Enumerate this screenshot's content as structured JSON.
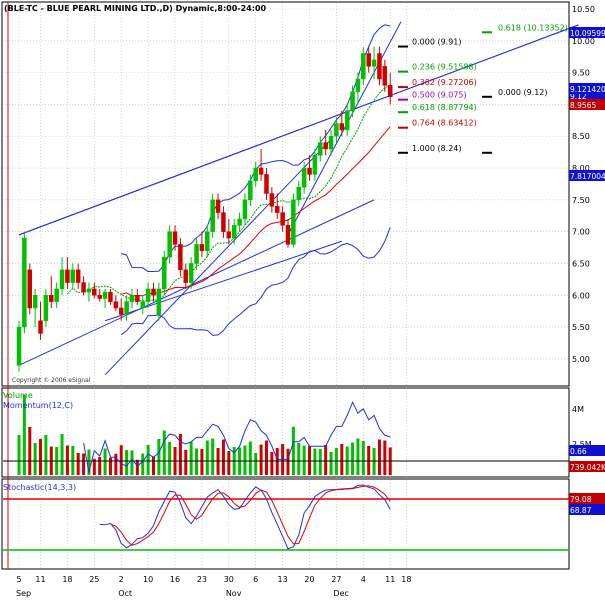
{
  "header": {
    "title": "(BLE-TC - BLUE PEARL MINING LTD.,D) Dynamic,8:00-24:00"
  },
  "copyright": "Copyright © 2006 eSignal",
  "colors": {
    "up": "#00c000",
    "down": "#d00000",
    "channel": "#2030e0",
    "ma_short": "#00a000",
    "ma_long": "#e00000",
    "fib_green": "#00a000",
    "fib_red": "#c00000",
    "fib_purple": "#a000c0",
    "fib_black": "#000000",
    "price_badge_blue": "#1010d0",
    "price_badge_red": "#c00000"
  },
  "chart_data": [
    {
      "type": "candlestick",
      "title": "(BLE-TC - BLUE PEARL MINING LTD.,D) Dynamic,8:00-24:00",
      "ylim": [
        4.7,
        10.5
      ],
      "y_ticks": [
        "10.50",
        "10.00",
        "9.50",
        "9.00",
        "8.50",
        "8.00",
        "7.50",
        "7.00",
        "6.50",
        "6.00",
        "5.50",
        "5.00"
      ],
      "x_ticks": [
        "5",
        "11",
        "18",
        "25",
        "2",
        "10",
        "16",
        "23",
        "30",
        "6",
        "13",
        "20",
        "27",
        "4",
        "11",
        "18"
      ],
      "months": [
        "Sep",
        "Oct",
        "Nov",
        "Dec"
      ],
      "right_badges": [
        {
          "value": "10.0959959",
          "style": "blue"
        },
        {
          "value": "9.12",
          "style": "blue"
        },
        {
          "value": "9.1214206",
          "style": "blue"
        },
        {
          "value": "8.9565",
          "style": "red"
        },
        {
          "value": "7.8170040",
          "style": "blue"
        }
      ],
      "fib_levels": [
        {
          "label": "0.000 (9.91)",
          "value": 9.91,
          "color": "black"
        },
        {
          "label": "0.236 (9.51588)",
          "value": 9.516,
          "color": "green"
        },
        {
          "label": "0.382 (9.27206)",
          "value": 9.272,
          "color": "red"
        },
        {
          "label": "0.500 (9.075)",
          "value": 9.075,
          "color": "purple"
        },
        {
          "label": "0.618 (8.87794)",
          "value": 8.878,
          "color": "green"
        },
        {
          "label": "0.764 (8.63412)",
          "value": 8.634,
          "color": "red"
        },
        {
          "label": "1.000 (8.24)",
          "value": 8.24,
          "color": "black"
        },
        {
          "label": "0.618 (10.13352)",
          "value": 10.134,
          "color": "green"
        },
        {
          "label": "0.000 (9.12)",
          "value": 9.12,
          "color": "black"
        }
      ],
      "candles": [
        {
          "o": 4.9,
          "h": 5.6,
          "l": 4.8,
          "c": 5.5
        },
        {
          "o": 5.5,
          "h": 7.0,
          "l": 5.4,
          "c": 6.9
        },
        {
          "o": 6.4,
          "h": 6.5,
          "l": 5.7,
          "c": 5.8
        },
        {
          "o": 5.8,
          "h": 6.1,
          "l": 5.5,
          "c": 6.0
        },
        {
          "o": 5.6,
          "h": 5.9,
          "l": 5.3,
          "c": 5.4
        },
        {
          "o": 5.6,
          "h": 6.1,
          "l": 5.5,
          "c": 6.0
        },
        {
          "o": 6.0,
          "h": 6.3,
          "l": 5.8,
          "c": 5.9
        },
        {
          "o": 5.9,
          "h": 6.2,
          "l": 5.8,
          "c": 6.1
        },
        {
          "o": 6.1,
          "h": 6.6,
          "l": 6.0,
          "c": 6.4
        },
        {
          "o": 6.4,
          "h": 6.6,
          "l": 6.1,
          "c": 6.2
        },
        {
          "o": 6.2,
          "h": 6.5,
          "l": 6.1,
          "c": 6.4
        },
        {
          "o": 6.4,
          "h": 6.5,
          "l": 6.1,
          "c": 6.2
        },
        {
          "o": 6.2,
          "h": 6.3,
          "l": 6.0,
          "c": 6.05
        },
        {
          "o": 6.05,
          "h": 6.2,
          "l": 5.9,
          "c": 6.1
        },
        {
          "o": 6.1,
          "h": 6.2,
          "l": 5.95,
          "c": 6.0
        },
        {
          "o": 6.0,
          "h": 6.1,
          "l": 5.9,
          "c": 5.95
        },
        {
          "o": 5.95,
          "h": 6.1,
          "l": 5.8,
          "c": 6.05
        },
        {
          "o": 6.05,
          "h": 6.1,
          "l": 5.85,
          "c": 5.9
        },
        {
          "o": 5.9,
          "h": 6.0,
          "l": 5.75,
          "c": 5.8
        },
        {
          "o": 5.8,
          "h": 5.95,
          "l": 5.6,
          "c": 5.7
        },
        {
          "o": 5.7,
          "h": 6.0,
          "l": 5.6,
          "c": 5.9
        },
        {
          "o": 5.9,
          "h": 6.1,
          "l": 5.8,
          "c": 6.0
        },
        {
          "o": 6.0,
          "h": 6.1,
          "l": 5.85,
          "c": 5.9
        },
        {
          "o": 5.8,
          "h": 6.0,
          "l": 5.7,
          "c": 5.9
        },
        {
          "o": 5.9,
          "h": 6.2,
          "l": 5.8,
          "c": 6.1
        },
        {
          "o": 6.1,
          "h": 6.2,
          "l": 5.9,
          "c": 6.0
        },
        {
          "o": 5.7,
          "h": 6.2,
          "l": 5.6,
          "c": 6.1
        },
        {
          "o": 6.1,
          "h": 6.7,
          "l": 6.0,
          "c": 6.6
        },
        {
          "o": 6.6,
          "h": 7.1,
          "l": 6.5,
          "c": 7.0
        },
        {
          "o": 7.0,
          "h": 7.1,
          "l": 6.7,
          "c": 6.8
        },
        {
          "o": 6.8,
          "h": 6.9,
          "l": 6.3,
          "c": 6.4
        },
        {
          "o": 6.4,
          "h": 6.5,
          "l": 6.1,
          "c": 6.2
        },
        {
          "o": 6.2,
          "h": 6.6,
          "l": 6.1,
          "c": 6.5
        },
        {
          "o": 6.5,
          "h": 6.9,
          "l": 6.4,
          "c": 6.8
        },
        {
          "o": 6.8,
          "h": 7.0,
          "l": 6.6,
          "c": 6.7
        },
        {
          "o": 6.7,
          "h": 7.1,
          "l": 6.6,
          "c": 7.0
        },
        {
          "o": 7.0,
          "h": 7.6,
          "l": 6.9,
          "c": 7.5
        },
        {
          "o": 7.5,
          "h": 7.6,
          "l": 7.2,
          "c": 7.3
        },
        {
          "o": 7.3,
          "h": 7.4,
          "l": 6.9,
          "c": 7.0
        },
        {
          "o": 7.0,
          "h": 7.2,
          "l": 6.8,
          "c": 6.9
        },
        {
          "o": 6.9,
          "h": 7.2,
          "l": 6.8,
          "c": 7.1
        },
        {
          "o": 7.1,
          "h": 7.3,
          "l": 7.0,
          "c": 7.2
        },
        {
          "o": 7.2,
          "h": 7.6,
          "l": 7.1,
          "c": 7.5
        },
        {
          "o": 7.5,
          "h": 7.9,
          "l": 7.4,
          "c": 7.8
        },
        {
          "o": 7.8,
          "h": 8.1,
          "l": 7.7,
          "c": 8.0
        },
        {
          "o": 8.0,
          "h": 8.3,
          "l": 7.8,
          "c": 7.9
        },
        {
          "o": 7.9,
          "h": 8.0,
          "l": 7.5,
          "c": 7.6
        },
        {
          "o": 7.6,
          "h": 7.7,
          "l": 7.3,
          "c": 7.4
        },
        {
          "o": 7.4,
          "h": 7.6,
          "l": 7.2,
          "c": 7.3
        },
        {
          "o": 7.3,
          "h": 7.4,
          "l": 7.0,
          "c": 7.1
        },
        {
          "o": 7.1,
          "h": 7.2,
          "l": 6.75,
          "c": 6.8
        },
        {
          "o": 6.8,
          "h": 7.6,
          "l": 6.75,
          "c": 7.5
        },
        {
          "o": 7.5,
          "h": 7.8,
          "l": 7.4,
          "c": 7.7
        },
        {
          "o": 7.7,
          "h": 8.1,
          "l": 7.6,
          "c": 8.0
        },
        {
          "o": 8.0,
          "h": 8.2,
          "l": 7.8,
          "c": 7.9
        },
        {
          "o": 7.9,
          "h": 8.3,
          "l": 7.8,
          "c": 8.2
        },
        {
          "o": 8.2,
          "h": 8.5,
          "l": 8.1,
          "c": 8.4
        },
        {
          "o": 8.4,
          "h": 8.6,
          "l": 8.2,
          "c": 8.3
        },
        {
          "o": 8.3,
          "h": 8.6,
          "l": 8.2,
          "c": 8.5
        },
        {
          "o": 8.5,
          "h": 8.8,
          "l": 8.4,
          "c": 8.7
        },
        {
          "o": 8.7,
          "h": 8.9,
          "l": 8.5,
          "c": 8.6
        },
        {
          "o": 8.6,
          "h": 9.0,
          "l": 8.5,
          "c": 8.9
        },
        {
          "o": 8.9,
          "h": 9.3,
          "l": 8.8,
          "c": 9.2
        },
        {
          "o": 9.2,
          "h": 9.5,
          "l": 9.0,
          "c": 9.4
        },
        {
          "o": 9.4,
          "h": 9.9,
          "l": 9.3,
          "c": 9.8
        },
        {
          "o": 9.8,
          "h": 9.9,
          "l": 9.5,
          "c": 9.6
        },
        {
          "o": 9.6,
          "h": 9.91,
          "l": 9.4,
          "c": 9.7
        },
        {
          "o": 9.8,
          "h": 9.91,
          "l": 9.3,
          "c": 9.4
        },
        {
          "o": 9.6,
          "h": 9.7,
          "l": 9.2,
          "c": 9.3
        },
        {
          "o": 9.3,
          "h": 9.5,
          "l": 9.0,
          "c": 9.12
        }
      ]
    },
    {
      "type": "bar+line",
      "title": "Volume",
      "series_names": [
        "Volume",
        "Momentum(12,C)"
      ],
      "y_ticks": [
        "4M",
        "2.5M"
      ],
      "right_badges": [
        {
          "value": "0.66",
          "style": "blue"
        },
        {
          "value": "739.042K",
          "style": "red"
        }
      ]
    },
    {
      "type": "line",
      "title": "Stochastic(14,3,3)",
      "right_badges": [
        {
          "value": "79.08",
          "style": "red"
        },
        {
          "value": "68.87",
          "style": "blue"
        }
      ],
      "levels": [
        80,
        20
      ]
    }
  ]
}
